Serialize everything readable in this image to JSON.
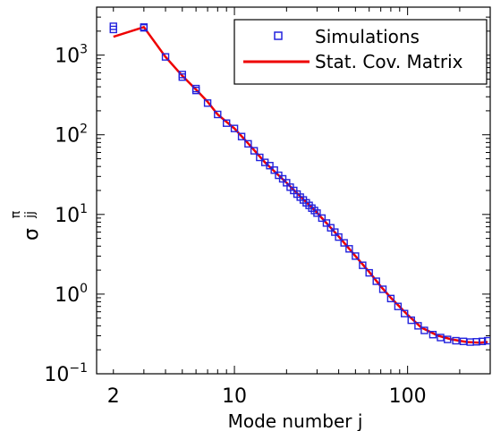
{
  "chart_data": {
    "type": "scatter",
    "xscale": "log",
    "yscale": "log",
    "xlim": [
      1.6,
      300
    ],
    "ylim": [
      0.1,
      4000
    ],
    "xlabel": "Mode number j",
    "ylabel": {
      "main": "σ",
      "superscript": "π",
      "subscript": "jj"
    },
    "x_ticks": [
      {
        "value": 2,
        "label": "2"
      },
      {
        "value": 10,
        "label": "10"
      },
      {
        "value": 100,
        "label": "100"
      }
    ],
    "y_ticks": [
      {
        "value": 0.1,
        "base": "10",
        "exp": "−1"
      },
      {
        "value": 1,
        "base": "10",
        "exp": "0"
      },
      {
        "value": 10,
        "base": "10",
        "exp": "1"
      },
      {
        "value": 100,
        "base": "10",
        "exp": "2"
      },
      {
        "value": 1000,
        "base": "10",
        "exp": "3"
      }
    ],
    "legend_position": "top-right",
    "series": [
      {
        "name": "Simulations",
        "style": "markers",
        "marker": "square",
        "color": "#2222dd",
        "points": [
          [
            2,
            2300
          ],
          [
            2,
            2100
          ],
          [
            3,
            2250
          ],
          [
            3,
            2200
          ],
          [
            4,
            950
          ],
          [
            5,
            570
          ],
          [
            5,
            530
          ],
          [
            6,
            380
          ],
          [
            6,
            360
          ],
          [
            7,
            250
          ],
          [
            8,
            180
          ],
          [
            9,
            140
          ],
          [
            10,
            120
          ],
          [
            11,
            95
          ],
          [
            12,
            77
          ],
          [
            13,
            63
          ],
          [
            14,
            52
          ],
          [
            15,
            45
          ],
          [
            16,
            41
          ],
          [
            17,
            36
          ],
          [
            18,
            31
          ],
          [
            19,
            28
          ],
          [
            20,
            25
          ],
          [
            21,
            22
          ],
          [
            22,
            20
          ],
          [
            23,
            18
          ],
          [
            24,
            16.5
          ],
          [
            25,
            15.2
          ],
          [
            26,
            14
          ],
          [
            27,
            13
          ],
          [
            28,
            12
          ],
          [
            29,
            11.2
          ],
          [
            30,
            10.4
          ],
          [
            32,
            9
          ],
          [
            34,
            7.8
          ],
          [
            36,
            6.8
          ],
          [
            38,
            6
          ],
          [
            40,
            5.2
          ],
          [
            43,
            4.4
          ],
          [
            46,
            3.7
          ],
          [
            50,
            3
          ],
          [
            55,
            2.3
          ],
          [
            60,
            1.85
          ],
          [
            66,
            1.45
          ],
          [
            72,
            1.15
          ],
          [
            80,
            0.88
          ],
          [
            88,
            0.7
          ],
          [
            96,
            0.57
          ],
          [
            105,
            0.47
          ],
          [
            115,
            0.4
          ],
          [
            125,
            0.35
          ],
          [
            140,
            0.31
          ],
          [
            155,
            0.285
          ],
          [
            170,
            0.27
          ],
          [
            190,
            0.26
          ],
          [
            210,
            0.255
          ],
          [
            230,
            0.25
          ],
          [
            250,
            0.252
          ],
          [
            270,
            0.255
          ],
          [
            290,
            0.26
          ]
        ]
      },
      {
        "name": "Stat. Cov. Matrix",
        "style": "line",
        "color": "#ee0000",
        "points": [
          [
            2,
            1700
          ],
          [
            3,
            2250
          ],
          [
            4,
            950
          ],
          [
            5,
            550
          ],
          [
            6,
            370
          ],
          [
            7,
            260
          ],
          [
            8,
            180
          ],
          [
            10,
            120
          ],
          [
            12,
            78
          ],
          [
            15,
            45
          ],
          [
            20,
            25
          ],
          [
            25,
            15.5
          ],
          [
            30,
            10.5
          ],
          [
            40,
            5.3
          ],
          [
            50,
            3
          ],
          [
            60,
            1.9
          ],
          [
            70,
            1.25
          ],
          [
            80,
            0.9
          ],
          [
            100,
            0.55
          ],
          [
            120,
            0.38
          ],
          [
            150,
            0.3
          ],
          [
            180,
            0.27
          ],
          [
            220,
            0.25
          ],
          [
            260,
            0.245
          ],
          [
            290,
            0.25
          ]
        ]
      }
    ]
  },
  "legend": {
    "simulations_label": "Simulations",
    "cov_label": "Stat. Cov. Matrix"
  }
}
